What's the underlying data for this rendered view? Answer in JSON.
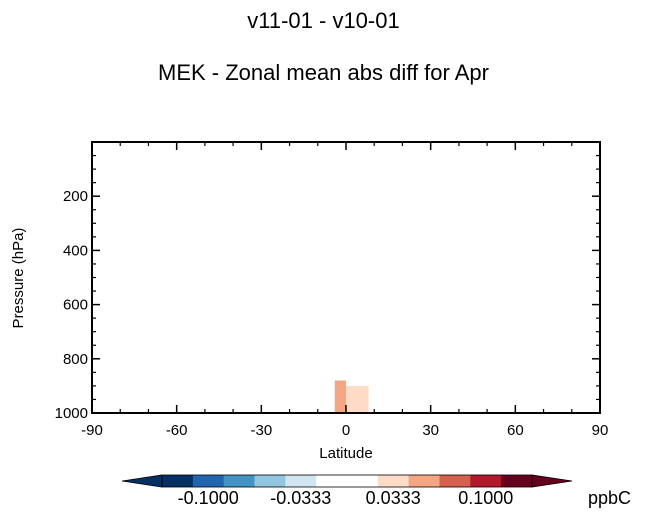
{
  "title": "v11-01 - v10-01",
  "subtitle": "MEK - Zonal mean abs diff for Apr",
  "chart_data": {
    "type": "heatmap",
    "xlabel": "Latitude",
    "ylabel": "Pressure (hPa)",
    "xlim": [
      -90,
      90
    ],
    "ylim": [
      1000,
      0
    ],
    "xticks": [
      -90,
      -60,
      -30,
      0,
      30,
      60,
      90
    ],
    "yticks": [
      200,
      400,
      600,
      800,
      1000
    ],
    "cells": [
      {
        "lat0": -4,
        "lat1": 0,
        "p0": 880,
        "p1": 1000,
        "value": 0.05,
        "color": "#f4a582"
      },
      {
        "lat0": 0,
        "lat1": 8,
        "p0": 900,
        "p1": 1000,
        "value": 0.02,
        "color": "#fddbc7"
      }
    ],
    "colorbar": {
      "unit": "ppbC",
      "tick_labels": [
        "-0.1000",
        "-0.0333",
        "0.0333",
        "0.1000"
      ],
      "tick_values": [
        -0.1,
        -0.0333,
        0.0333,
        0.1
      ],
      "range": [
        -0.1333,
        0.1333
      ],
      "colors": [
        "#053061",
        "#2166ac",
        "#4393c3",
        "#92c5de",
        "#d1e5f0",
        "#ffffff",
        "#ffffff",
        "#fddbc7",
        "#f4a582",
        "#d6604d",
        "#b2182b",
        "#67001f"
      ],
      "extend": "both"
    },
    "grid": false
  }
}
